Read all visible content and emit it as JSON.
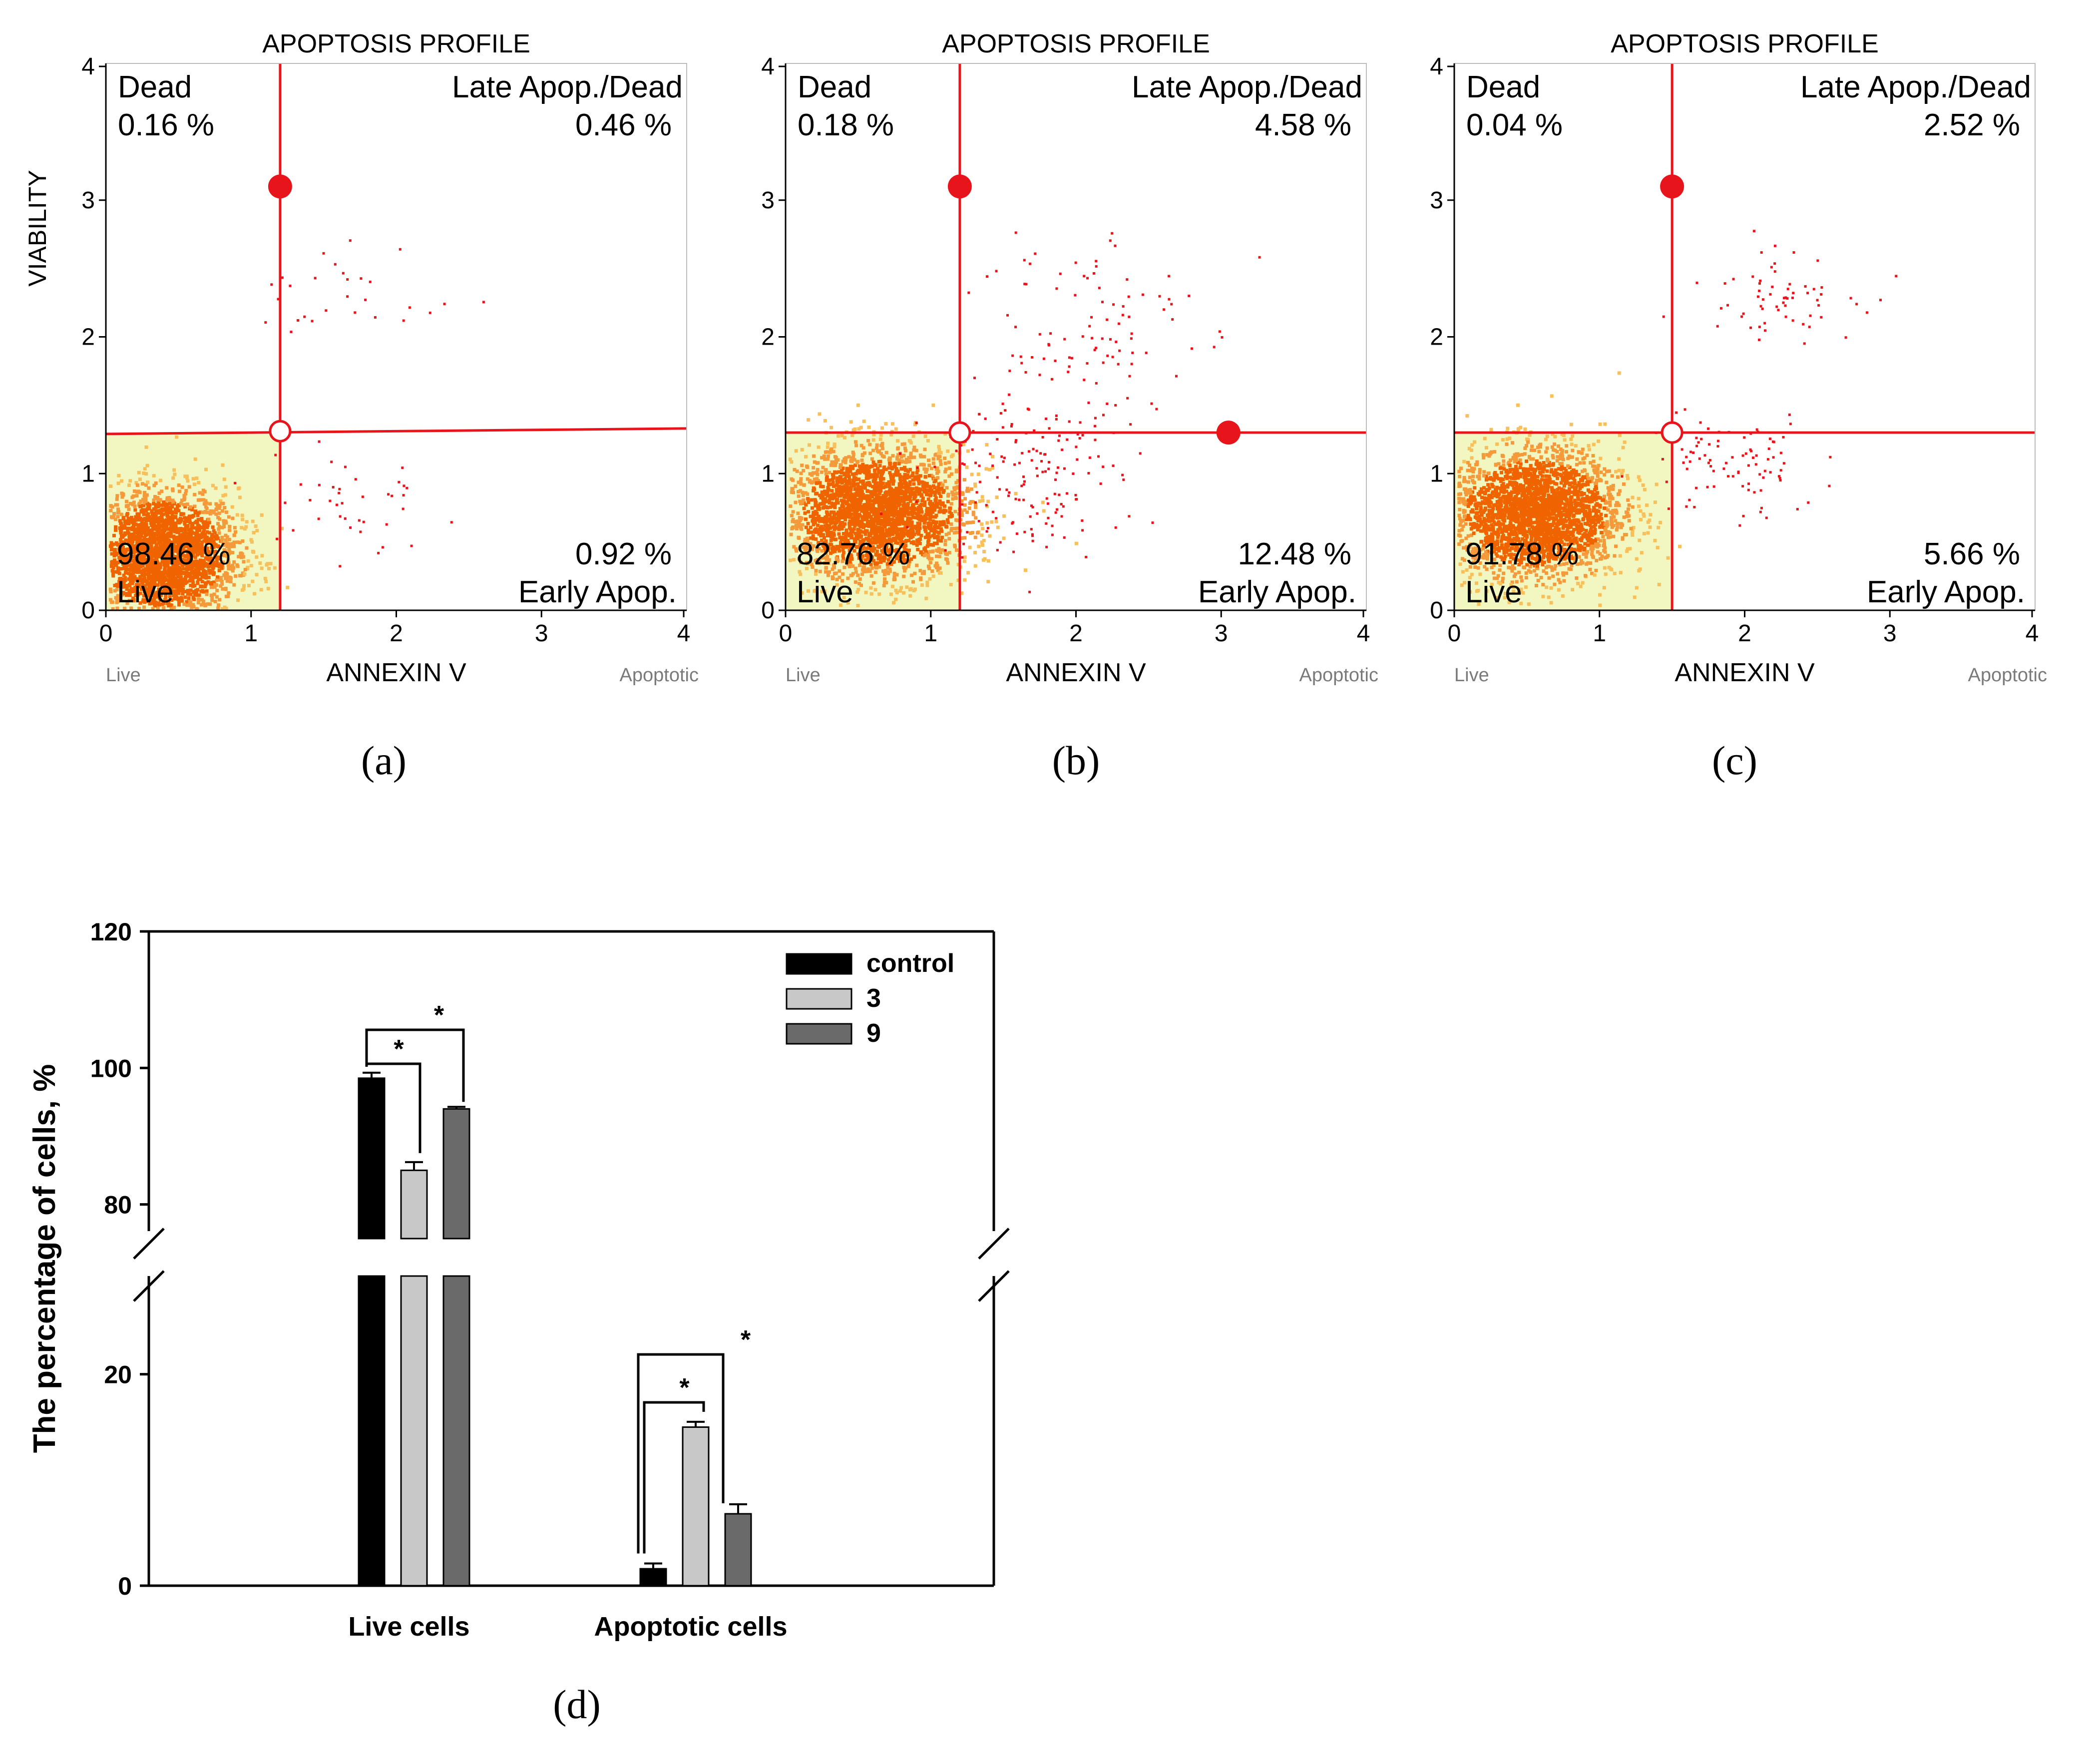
{
  "colors": {
    "axis": "#000000",
    "gate": "#e8141c",
    "live_fill": "#f2f7c2",
    "dense": "#f06400",
    "scatter": "#e8141c",
    "control": "#000000",
    "series3": "#c8c8c8",
    "series9": "#6a6a6a"
  },
  "flow_panels": [
    {
      "panel_label": "(a)",
      "title": "APOPTOSIS PROFILE",
      "ylabel": "VIABILITY",
      "xlabel": "ANNEXIN V",
      "x_left_label": "Live",
      "x_right_label": "Apoptotic",
      "x_ticks": [
        "0",
        "1",
        "2",
        "3",
        "4"
      ],
      "y_ticks": [
        "0",
        "1",
        "2",
        "3",
        "4"
      ],
      "quadrants": {
        "dead_name": "Dead",
        "dead_pct": "0.16 %",
        "late_name": "Late Apop./Dead",
        "late_pct": "0.46 %",
        "live_pct": "98.46 %",
        "live_name": "Live",
        "early_pct": "0.92 %",
        "early_name": "Early Apop."
      },
      "gate": {
        "x": 1.2,
        "y_left": 1.29,
        "y_right": 1.33,
        "handle_y": 3.1,
        "right_handle_x": null
      },
      "population": {
        "cx": 0.38,
        "cy": 0.42,
        "sx": 0.26,
        "sy": 0.24,
        "extra_in_gate": 40,
        "apop_cluster": {
          "cx": 1.6,
          "cy": 0.8,
          "sx": 0.3,
          "sy": 0.25
        },
        "late_cluster": {
          "cx": 1.75,
          "cy": 2.3,
          "sx": 0.35,
          "sy": 0.2
        }
      },
      "chart_data": {
        "type": "scatter",
        "xlim": [
          0,
          4
        ],
        "ylim": [
          0,
          4
        ],
        "gate_x": 1.2,
        "gate_y": 1.3,
        "quadrant_percentages": {
          "Dead": 0.16,
          "Late Apop./Dead": 0.46,
          "Live": 98.46,
          "Early Apop.": 0.92
        }
      }
    },
    {
      "panel_label": "(b)",
      "title": "APOPTOSIS PROFILE",
      "ylabel": "",
      "xlabel": "ANNEXIN V",
      "x_left_label": "Live",
      "x_right_label": "Apoptotic",
      "x_ticks": [
        "0",
        "1",
        "2",
        "3",
        "4"
      ],
      "y_ticks": [
        "0",
        "1",
        "2",
        "3",
        "4"
      ],
      "quadrants": {
        "dead_name": "Dead",
        "dead_pct": "0.18 %",
        "late_name": "Late Apop./Dead",
        "late_pct": "4.58 %",
        "live_pct": "82.76 %",
        "live_name": "Live",
        "early_pct": "12.48 %",
        "early_name": "Early Apop."
      },
      "gate": {
        "x": 1.2,
        "y_left": 1.3,
        "y_right": 1.3,
        "handle_y": 3.1,
        "right_handle_x": 3.05
      },
      "population": {
        "cx": 0.62,
        "cy": 0.72,
        "sx": 0.32,
        "sy": 0.24,
        "extra_in_gate": 150,
        "apop_cluster": {
          "cx": 1.65,
          "cy": 1.0,
          "sx": 0.32,
          "sy": 0.3
        },
        "late_cluster": {
          "cx": 2.0,
          "cy": 2.05,
          "sx": 0.38,
          "sy": 0.45
        }
      },
      "chart_data": {
        "type": "scatter",
        "xlim": [
          0,
          4
        ],
        "ylim": [
          0,
          4
        ],
        "gate_x": 1.2,
        "gate_y": 1.3,
        "quadrant_percentages": {
          "Dead": 0.18,
          "Late Apop./Dead": 4.58,
          "Live": 82.76,
          "Early Apop.": 12.48
        }
      }
    },
    {
      "panel_label": "(c)",
      "title": "APOPTOSIS PROFILE",
      "ylabel": "",
      "xlabel": "ANNEXIN V",
      "x_left_label": "Live",
      "x_right_label": "Apoptotic",
      "x_ticks": [
        "0",
        "1",
        "2",
        "3",
        "4"
      ],
      "y_ticks": [
        "0",
        "1",
        "2",
        "3",
        "4"
      ],
      "quadrants": {
        "dead_name": "Dead",
        "dead_pct": "0.04 %",
        "late_name": "Late Apop./Dead",
        "late_pct": "2.52 %",
        "live_pct": "91.78 %",
        "live_name": "Live",
        "early_pct": "5.66 %",
        "early_name": "Early Apop."
      },
      "gate": {
        "x": 1.5,
        "y_left": 1.3,
        "y_right": 1.3,
        "handle_y": 3.1,
        "right_handle_x": null
      },
      "population": {
        "cx": 0.55,
        "cy": 0.72,
        "sx": 0.3,
        "sy": 0.24,
        "extra_in_gate": 90,
        "apop_cluster": {
          "cx": 1.9,
          "cy": 1.05,
          "sx": 0.3,
          "sy": 0.2
        },
        "late_cluster": {
          "cx": 2.2,
          "cy": 2.35,
          "sx": 0.28,
          "sy": 0.17
        }
      },
      "chart_data": {
        "type": "scatter",
        "xlim": [
          0,
          4
        ],
        "ylim": [
          0,
          4
        ],
        "gate_x": 1.5,
        "gate_y": 1.3,
        "quadrant_percentages": {
          "Dead": 0.04,
          "Late Apop./Dead": 2.52,
          "Live": 91.78,
          "Early Apop.": 5.66
        }
      }
    }
  ],
  "bar_panel": {
    "panel_label": "(d)",
    "chart_data": {
      "type": "bar",
      "ylabel": "The percentage of cells, %",
      "categories": [
        "Live cells",
        "Apoptotic cells"
      ],
      "series": [
        {
          "name": "control",
          "values": [
            98.5,
            1.6
          ],
          "errors": [
            0.8,
            0.5
          ]
        },
        {
          "name": "3",
          "values": [
            85.0,
            15.0
          ],
          "errors": [
            1.2,
            0.5
          ]
        },
        {
          "name": "9",
          "values": [
            94.0,
            6.8
          ],
          "errors": [
            0.3,
            0.9
          ]
        }
      ],
      "y_ticks_upper": [
        "80",
        "100",
        "120"
      ],
      "y_ticks_lower": [
        "0",
        "20"
      ],
      "upper_ylim": [
        75,
        120
      ],
      "lower_ylim": [
        0,
        30
      ],
      "axis_break": [
        30,
        75
      ],
      "significance_marker": "*"
    }
  }
}
